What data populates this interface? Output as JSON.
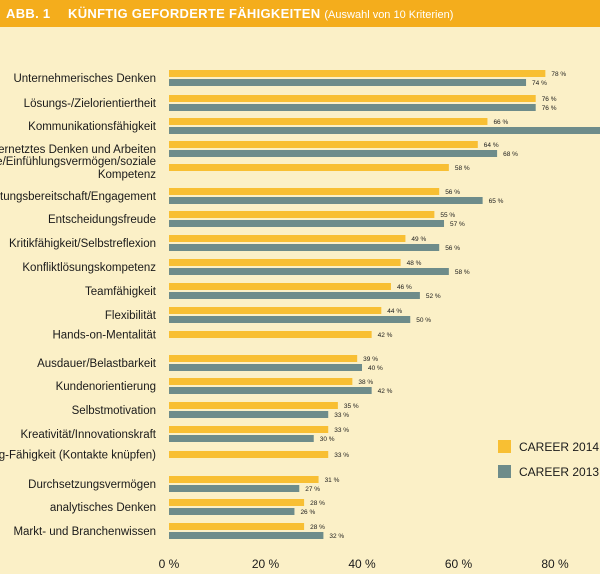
{
  "header": {
    "figure_label": "ABB. 1",
    "title": "KÜNFTIG GEFORDERTE FÄHIGKEITEN",
    "subtitle": "(Auswahl von 10 Kriterien)"
  },
  "colors": {
    "career_2014": "#f8bf33",
    "career_2013": "#6e8c8a",
    "header_bg": "#f4ad1c",
    "background": "#fbf0c7"
  },
  "chart_data": {
    "type": "bar",
    "orientation": "horizontal",
    "title": "KÜNFTIG GEFORDERTE FÄHIGKEITEN",
    "subtitle": "(Auswahl von 10 Kriterien)",
    "xlim": [
      0,
      90
    ],
    "x_ticks": [
      0,
      20,
      40,
      60,
      80
    ],
    "x_tick_labels": [
      "0 %",
      "20 %",
      "40 %",
      "60 %",
      "80 %"
    ],
    "legend_position": "right",
    "categories": [
      [
        "Unternehmerisches Denken"
      ],
      [
        "Lösungs-/Zielorientiertheit"
      ],
      [
        "Kommunikationsfähigkeit"
      ],
      [
        "Vernetztes Denken und Arbeiten"
      ],
      [
        "Empathie/Einfühlungsvermögen/soziale",
        "Kompetenz"
      ],
      [
        "Leistungsbereitschaft/Engagement"
      ],
      [
        "Entscheidungsfreude"
      ],
      [
        "Kritikfähigkeit/Selbstreflexion"
      ],
      [
        "Konfliktlösungskompetenz"
      ],
      [
        "Teamfähigkeit"
      ],
      [
        "Flexibilität"
      ],
      [
        "Hands-on-Mentalität"
      ],
      [
        "Ausdauer/Belastbarkeit"
      ],
      [
        "Kundenorientierung"
      ],
      [
        "Selbstmotivation"
      ],
      [
        "Kreativität/Innovationskraft"
      ],
      [
        "Networking-Fähigkeit (Kontakte knüpfen)"
      ],
      [
        "Durchsetzungsvermögen"
      ],
      [
        "analytisches Denken"
      ],
      [
        "Markt- und Branchenwissen"
      ]
    ],
    "series": [
      {
        "name": "CAREER 2014",
        "values": [
          78,
          76,
          66,
          64,
          58,
          56,
          55,
          49,
          48,
          46,
          44,
          42,
          39,
          38,
          35,
          33,
          33,
          31,
          28,
          28
        ],
        "value_labels": [
          "78 %",
          "76 %",
          "66 %",
          "64 %",
          "58 %",
          "56 %",
          "55 %",
          "49 %",
          "48 %",
          "46 %",
          "44 %",
          "42 %",
          "39 %",
          "38 %",
          "35 %",
          "33 %",
          "33 %",
          "31 %",
          "28 %",
          "28 %"
        ]
      },
      {
        "name": "CAREER 2013",
        "values": [
          74,
          76,
          90,
          68,
          null,
          65,
          57,
          56,
          58,
          52,
          50,
          null,
          40,
          42,
          33,
          30,
          null,
          27,
          26,
          32
        ],
        "value_labels": [
          "74 %",
          "76 %",
          "",
          "68 %",
          "",
          "65 %",
          "57 %",
          "56 %",
          "58 %",
          "52 %",
          "50 %",
          "",
          "40 %",
          "42 %",
          "33 %",
          "30 %",
          "",
          "27 %",
          "26 %",
          "32 %"
        ]
      }
    ]
  }
}
